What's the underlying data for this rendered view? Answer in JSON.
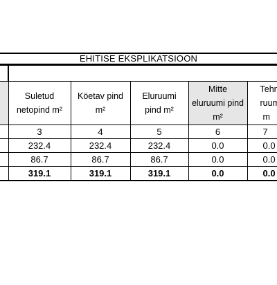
{
  "table": {
    "title": "EHITISE EKSPLIKATSIOON",
    "columns": [
      {
        "header_line1": "Suletud",
        "header_line2": "netopind m²",
        "number": "3"
      },
      {
        "header_line1": "Köetav pind",
        "header_line2": "m²",
        "number": "4"
      },
      {
        "header_line1": "Eluruumi",
        "header_line2": "pind m²",
        "number": "5"
      },
      {
        "header_line1": "Mitte",
        "header_line2": "eluruumi pind",
        "header_line3": "m²",
        "number": "6"
      },
      {
        "header_line1": "Tehn",
        "header_line2": "ruumi",
        "header_line3": "m",
        "number": "7"
      }
    ],
    "rows": [
      {
        "values": [
          "232.4",
          "232.4",
          "232.4",
          "0.0",
          "0.0"
        ]
      },
      {
        "values": [
          "86.7",
          "86.7",
          "86.7",
          "0.0",
          "0.0"
        ]
      }
    ],
    "total": {
      "values": [
        "319.1",
        "319.1",
        "319.1",
        "0.0",
        "0.0"
      ]
    }
  }
}
